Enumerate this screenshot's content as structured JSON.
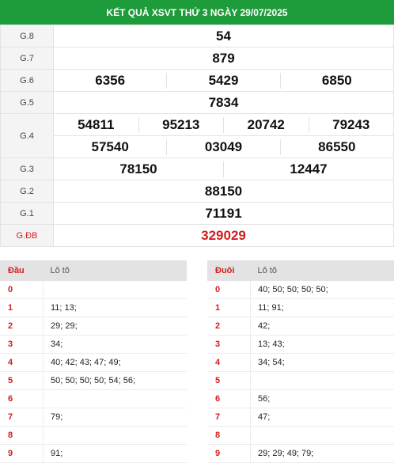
{
  "header": {
    "title": "KẾT QUẢ XSVT THỨ 3 NGÀY 29/07/2025"
  },
  "prizes": {
    "g8": {
      "label": "G.8",
      "numbers": [
        "54"
      ]
    },
    "g7": {
      "label": "G.7",
      "numbers": [
        "879"
      ]
    },
    "g6": {
      "label": "G.6",
      "numbers": [
        "6356",
        "5429",
        "6850"
      ]
    },
    "g5": {
      "label": "G.5",
      "numbers": [
        "7834"
      ]
    },
    "g4": {
      "label": "G.4",
      "row1": [
        "54811",
        "95213",
        "20742",
        "79243"
      ],
      "row2": [
        "57540",
        "03049",
        "86550"
      ]
    },
    "g3": {
      "label": "G.3",
      "numbers": [
        "78150",
        "12447"
      ]
    },
    "g2": {
      "label": "G.2",
      "numbers": [
        "88150"
      ]
    },
    "g1": {
      "label": "G.1",
      "numbers": [
        "71191"
      ]
    },
    "gdb": {
      "label": "G.ĐB",
      "numbers": [
        "329029"
      ]
    }
  },
  "loto_head": {
    "col1": "Đầu",
    "col2": "Lô tô",
    "rows": [
      {
        "k": "0",
        "v": ""
      },
      {
        "k": "1",
        "v": "11; 13;"
      },
      {
        "k": "2",
        "v": "29; 29;"
      },
      {
        "k": "3",
        "v": "34;"
      },
      {
        "k": "4",
        "v": "40; 42; 43; 47; 49;"
      },
      {
        "k": "5",
        "v": "50; 50; 50; 50; 54; 56;"
      },
      {
        "k": "6",
        "v": ""
      },
      {
        "k": "7",
        "v": "79;"
      },
      {
        "k": "8",
        "v": ""
      },
      {
        "k": "9",
        "v": "91;"
      }
    ]
  },
  "loto_tail": {
    "col1": "Đuôi",
    "col2": "Lô tô",
    "rows": [
      {
        "k": "0",
        "v": "40; 50; 50; 50; 50;"
      },
      {
        "k": "1",
        "v": "11; 91;"
      },
      {
        "k": "2",
        "v": "42;"
      },
      {
        "k": "3",
        "v": "13; 43;"
      },
      {
        "k": "4",
        "v": "34; 54;"
      },
      {
        "k": "5",
        "v": ""
      },
      {
        "k": "6",
        "v": "56;"
      },
      {
        "k": "7",
        "v": "47;"
      },
      {
        "k": "8",
        "v": ""
      },
      {
        "k": "9",
        "v": "29; 29; 49; 79;"
      }
    ]
  }
}
